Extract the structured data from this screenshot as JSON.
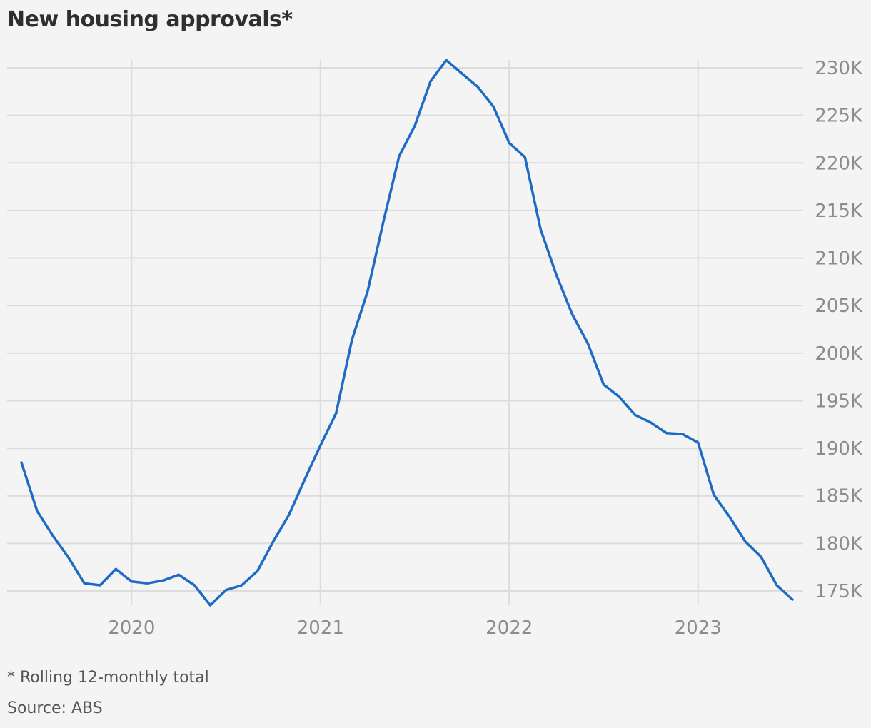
{
  "colors": {
    "background": "#f4f4f4",
    "line": "#1d6bc4",
    "grid": "#dcdcdc",
    "tick_text": "#8c8c8c"
  },
  "chart_data": {
    "type": "line",
    "title": "New housing approvals*",
    "footnote": "* Rolling 12-monthly total",
    "source": "Source: ABS",
    "xlabel": "",
    "ylabel": "",
    "x_ticks": [
      "2020",
      "2021",
      "2022",
      "2023"
    ],
    "y_ticks": [
      "175K",
      "180K",
      "185K",
      "190K",
      "195K",
      "200K",
      "205K",
      "210K",
      "215K",
      "220K",
      "225K",
      "230K"
    ],
    "y_tick_values": [
      175000,
      180000,
      185000,
      190000,
      195000,
      200000,
      205000,
      210000,
      215000,
      220000,
      225000,
      230000
    ],
    "ylim": [
      174000,
      231000
    ],
    "xlim": [
      "2019-06",
      "2023-07"
    ],
    "grid": true,
    "y_axis_side": "right",
    "series": [
      {
        "x": [
          "2019-06",
          "2019-07",
          "2019-08",
          "2019-09",
          "2019-10",
          "2019-11",
          "2019-12",
          "2020-01",
          "2020-02",
          "2020-03",
          "2020-04",
          "2020-05",
          "2020-06",
          "2020-07",
          "2020-08",
          "2020-09",
          "2020-10",
          "2020-11",
          "2020-12",
          "2021-01",
          "2021-02",
          "2021-03",
          "2021-04",
          "2021-05",
          "2021-06",
          "2021-07",
          "2021-08",
          "2021-09",
          "2021-10",
          "2021-11",
          "2021-12",
          "2022-01",
          "2022-02",
          "2022-03",
          "2022-04",
          "2022-05",
          "2022-06",
          "2022-07",
          "2022-08",
          "2022-09",
          "2022-10",
          "2022-11",
          "2022-12",
          "2023-01",
          "2023-02",
          "2023-03",
          "2023-04",
          "2023-05",
          "2023-06",
          "2023-07"
        ],
        "values": [
          188500,
          183400,
          180800,
          178500,
          175800,
          175600,
          177300,
          176000,
          175800,
          176100,
          176700,
          175600,
          173500,
          175100,
          175600,
          177100,
          180200,
          183000,
          186700,
          190300,
          193700,
          201400,
          206500,
          213800,
          220700,
          223900,
          228600,
          230800,
          229400,
          228000,
          225900,
          222100,
          220600,
          213000,
          208200,
          204100,
          201000,
          196700,
          195400,
          193500,
          192700,
          191600,
          191500,
          190600,
          185100,
          182800,
          180200,
          178600,
          175600,
          174100
        ]
      }
    ]
  }
}
